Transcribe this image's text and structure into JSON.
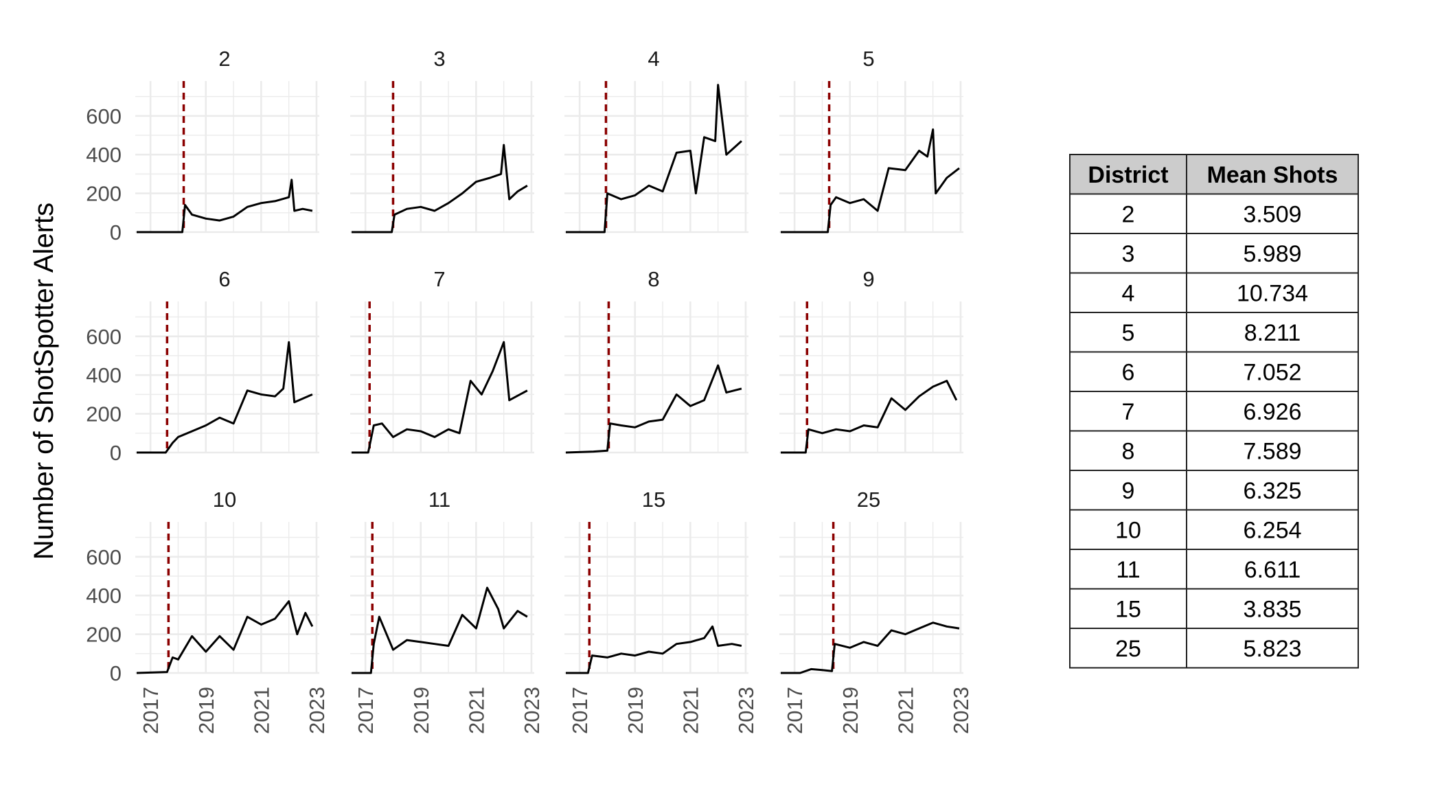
{
  "chart_data": {
    "type": "line",
    "layout": "facet grid, 3 rows x 4 columns, shared axes",
    "ylabel": "Number of ShotSpotter Alerts",
    "xlabel": "",
    "ylim": [
      0,
      780
    ],
    "yticks": [
      "0",
      "200",
      "400",
      "600"
    ],
    "xlim": [
      2016.45,
      2023.1
    ],
    "xticks": [
      "2017",
      "2019",
      "2021",
      "2023"
    ],
    "grid": true,
    "reference_line": {
      "style": "dashed",
      "color": "#8b0000",
      "meaning": "rollout date per district"
    },
    "panels": [
      {
        "district": "2",
        "rollout": 2018.2,
        "end": 2022.85,
        "x": [
          2016.5,
          2018.15,
          2018.25,
          2018.5,
          2019.0,
          2019.5,
          2020.0,
          2020.5,
          2021.0,
          2021.5,
          2022.0,
          2022.1,
          2022.2,
          2022.5,
          2022.85
        ],
        "y": [
          0,
          0,
          140,
          90,
          70,
          60,
          80,
          130,
          150,
          160,
          180,
          270,
          110,
          120,
          110
        ]
      },
      {
        "district": "3",
        "rollout": 2018.0,
        "end": 2022.85,
        "x": [
          2016.5,
          2017.95,
          2018.05,
          2018.5,
          2019.0,
          2019.5,
          2020.0,
          2020.5,
          2021.0,
          2021.5,
          2021.9,
          2022.0,
          2022.2,
          2022.5,
          2022.85
        ],
        "y": [
          0,
          0,
          90,
          120,
          130,
          110,
          150,
          200,
          260,
          280,
          300,
          450,
          170,
          210,
          240
        ]
      },
      {
        "district": "4",
        "rollout": 2017.95,
        "end": 2022.85,
        "x": [
          2016.5,
          2017.9,
          2018.0,
          2018.5,
          2019.0,
          2019.5,
          2020.0,
          2020.5,
          2021.0,
          2021.2,
          2021.5,
          2021.9,
          2022.0,
          2022.3,
          2022.85
        ],
        "y": [
          0,
          0,
          200,
          170,
          190,
          240,
          210,
          410,
          420,
          200,
          490,
          470,
          760,
          400,
          470
        ]
      },
      {
        "district": "5",
        "rollout": 2018.25,
        "end": 2022.95,
        "x": [
          2016.5,
          2018.2,
          2018.3,
          2018.5,
          2019.0,
          2019.5,
          2020.0,
          2020.4,
          2021.0,
          2021.5,
          2021.8,
          2022.0,
          2022.1,
          2022.5,
          2022.95
        ],
        "y": [
          0,
          0,
          140,
          180,
          150,
          170,
          110,
          330,
          320,
          420,
          390,
          530,
          200,
          280,
          330
        ]
      },
      {
        "district": "6",
        "rollout": 2017.6,
        "end": 2022.85,
        "x": [
          2016.5,
          2017.55,
          2017.8,
          2018.0,
          2018.5,
          2019.0,
          2019.5,
          2020.0,
          2020.5,
          2021.0,
          2021.5,
          2021.8,
          2022.0,
          2022.2,
          2022.85
        ],
        "y": [
          0,
          0,
          50,
          80,
          110,
          140,
          180,
          150,
          320,
          300,
          290,
          330,
          570,
          260,
          300
        ]
      },
      {
        "district": "7",
        "rollout": 2017.15,
        "end": 2022.85,
        "x": [
          2016.5,
          2017.1,
          2017.3,
          2017.6,
          2018.0,
          2018.5,
          2019.0,
          2019.5,
          2020.0,
          2020.4,
          2020.8,
          2021.2,
          2021.6,
          2022.0,
          2022.2,
          2022.85
        ],
        "y": [
          0,
          0,
          140,
          150,
          80,
          120,
          110,
          80,
          120,
          100,
          370,
          300,
          420,
          570,
          270,
          320
        ]
      },
      {
        "district": "8",
        "rollout": 2018.05,
        "end": 2022.85,
        "x": [
          2016.5,
          2017.5,
          2018.0,
          2018.1,
          2018.5,
          2019.0,
          2019.5,
          2020.0,
          2020.5,
          2021.0,
          2021.5,
          2022.0,
          2022.3,
          2022.85
        ],
        "y": [
          0,
          5,
          10,
          150,
          140,
          130,
          160,
          170,
          300,
          240,
          270,
          450,
          310,
          330
        ]
      },
      {
        "district": "9",
        "rollout": 2017.45,
        "end": 2022.85,
        "x": [
          2016.5,
          2017.4,
          2017.5,
          2018.0,
          2018.5,
          2019.0,
          2019.5,
          2020.0,
          2020.5,
          2021.0,
          2021.5,
          2022.0,
          2022.5,
          2022.85
        ],
        "y": [
          0,
          0,
          120,
          100,
          120,
          110,
          140,
          130,
          280,
          220,
          290,
          340,
          370,
          270
        ]
      },
      {
        "district": "10",
        "rollout": 2017.65,
        "end": 2022.85,
        "x": [
          2016.5,
          2017.6,
          2017.8,
          2018.0,
          2018.5,
          2019.0,
          2019.5,
          2020.0,
          2020.5,
          2021.0,
          2021.5,
          2022.0,
          2022.3,
          2022.6,
          2022.85
        ],
        "y": [
          0,
          5,
          80,
          70,
          190,
          110,
          190,
          120,
          290,
          250,
          280,
          370,
          200,
          310,
          240
        ]
      },
      {
        "district": "11",
        "rollout": 2017.25,
        "end": 2022.85,
        "x": [
          2016.5,
          2017.2,
          2017.3,
          2017.5,
          2018.0,
          2018.5,
          2019.0,
          2019.5,
          2020.0,
          2020.5,
          2021.0,
          2021.4,
          2021.8,
          2022.0,
          2022.5,
          2022.85
        ],
        "y": [
          0,
          0,
          150,
          290,
          120,
          170,
          160,
          150,
          140,
          300,
          230,
          440,
          330,
          230,
          320,
          290
        ]
      },
      {
        "district": "15",
        "rollout": 2017.35,
        "end": 2022.85,
        "x": [
          2016.5,
          2017.3,
          2017.45,
          2018.0,
          2018.5,
          2019.0,
          2019.5,
          2020.0,
          2020.5,
          2021.0,
          2021.5,
          2021.8,
          2022.0,
          2022.5,
          2022.85
        ],
        "y": [
          0,
          0,
          90,
          80,
          100,
          90,
          110,
          100,
          150,
          160,
          180,
          240,
          140,
          150,
          140
        ]
      },
      {
        "district": "25",
        "rollout": 2018.4,
        "end": 2022.95,
        "x": [
          2016.5,
          2017.2,
          2017.6,
          2018.0,
          2018.35,
          2018.45,
          2019.0,
          2019.5,
          2020.0,
          2020.5,
          2021.0,
          2021.5,
          2022.0,
          2022.5,
          2022.95
        ],
        "y": [
          0,
          0,
          20,
          15,
          10,
          150,
          130,
          160,
          140,
          220,
          200,
          230,
          260,
          240,
          230
        ]
      }
    ]
  },
  "table": {
    "headers": [
      "District",
      "Mean Shots"
    ],
    "rows": [
      [
        "2",
        "3.509"
      ],
      [
        "3",
        "5.989"
      ],
      [
        "4",
        "10.734"
      ],
      [
        "5",
        "8.211"
      ],
      [
        "6",
        "7.052"
      ],
      [
        "7",
        "6.926"
      ],
      [
        "8",
        "7.589"
      ],
      [
        "9",
        "6.325"
      ],
      [
        "10",
        "6.254"
      ],
      [
        "11",
        "6.611"
      ],
      [
        "15",
        "3.835"
      ],
      [
        "25",
        "5.823"
      ]
    ],
    "header_fill": "#cccccc"
  },
  "colors": {
    "series": "#000000",
    "rollout_line": "#8b0000",
    "grid": "#ebebeb"
  }
}
